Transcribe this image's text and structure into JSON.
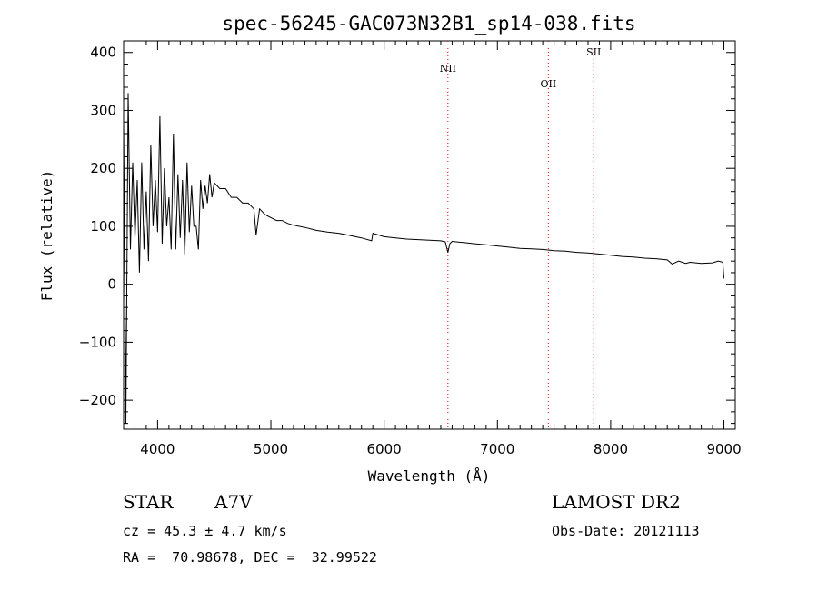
{
  "chart_data": {
    "type": "line",
    "title": "spec-56245-GAC073N32B1_sp14-038.fits",
    "xlabel": "Wavelength (Å)",
    "ylabel": "Flux (relative)",
    "xlim": [
      3700,
      9100
    ],
    "ylim": [
      -250,
      420
    ],
    "xticks": [
      4000,
      5000,
      6000,
      7000,
      8000,
      9000
    ],
    "yticks": [
      -200,
      -100,
      0,
      100,
      200,
      300,
      400
    ],
    "ytick_labels": [
      "−200",
      "−100",
      "0",
      "100",
      "200",
      "300",
      "400"
    ],
    "grid": false,
    "line_color": "#000000",
    "marker_color": "#ff0000",
    "series": [
      {
        "x": [
          3700,
          3720,
          3740,
          3760,
          3780,
          3800,
          3820,
          3840,
          3860,
          3880,
          3900,
          3920,
          3940,
          3960,
          3980,
          4000,
          4020,
          4040,
          4060,
          4080,
          4100,
          4120,
          4140,
          4160,
          4180,
          4200,
          4220,
          4240,
          4260,
          4280,
          4300,
          4320,
          4340,
          4360,
          4380,
          4400,
          4420,
          4440,
          4460,
          4480,
          4500,
          4550,
          4600,
          4650,
          4700,
          4750,
          4800,
          4850,
          4870,
          4900,
          4950,
          5000,
          5050,
          5100,
          5150,
          5200,
          5300,
          5400,
          5500,
          5600,
          5700,
          5800,
          5890,
          5900,
          6000,
          6100,
          6200,
          6300,
          6400,
          6500,
          6540,
          6563,
          6580,
          6600,
          6700,
          6800,
          6900,
          7000,
          7100,
          7200,
          7300,
          7400,
          7500,
          7600,
          7700,
          7800,
          7900,
          8000,
          8100,
          8200,
          8300,
          8400,
          8500,
          8542,
          8600,
          8662,
          8700,
          8800,
          8900,
          8950,
          8990,
          9000
        ],
        "y": [
          280,
          -240,
          330,
          60,
          210,
          80,
          180,
          20,
          210,
          60,
          160,
          40,
          240,
          100,
          180,
          90,
          290,
          70,
          200,
          100,
          150,
          60,
          260,
          60,
          190,
          80,
          180,
          50,
          210,
          90,
          170,
          100,
          100,
          60,
          180,
          130,
          170,
          140,
          190,
          150,
          175,
          165,
          165,
          150,
          150,
          140,
          140,
          130,
          85,
          130,
          120,
          115,
          110,
          110,
          105,
          102,
          98,
          93,
          90,
          88,
          84,
          80,
          75,
          88,
          82,
          80,
          78,
          77,
          76,
          75,
          73,
          55,
          70,
          74,
          72,
          70,
          68,
          66,
          64,
          62,
          61,
          60,
          58,
          57,
          55,
          54,
          52,
          50,
          48,
          47,
          45,
          44,
          42,
          35,
          40,
          36,
          38,
          36,
          37,
          40,
          38,
          10
        ]
      }
    ],
    "lines": [
      {
        "label": "NII",
        "x": 6563
      },
      {
        "label": "OII",
        "x": 7450
      },
      {
        "label": "SII",
        "x": 7850
      }
    ]
  },
  "info": {
    "object_class": "STAR",
    "subclass": "A7V",
    "survey": "LAMOST DR2",
    "cz": "cz = 45.3 ± 4.7 km/s",
    "obs_date": "Obs-Date: 20121113",
    "coords": "RA =  70.98678, DEC =  32.99522"
  }
}
